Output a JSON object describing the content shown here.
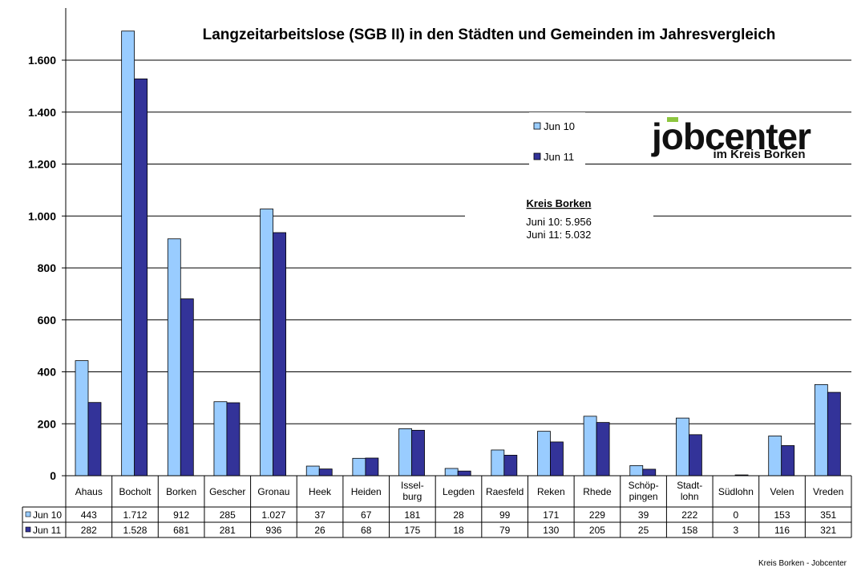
{
  "chart_data": {
    "type": "bar",
    "title": "Langzeitarbeitslose (SGB II) in den Städten und Gemeinden im Jahresvergleich",
    "categories": [
      "Ahaus",
      "Bocholt",
      "Borken",
      "Gescher",
      "Gronau",
      "Heek",
      "Heiden",
      "Issel-|burg",
      "Legden",
      "Raesfeld",
      "Reken",
      "Rhede",
      "Schöp-|pingen",
      "Stadt-|lohn",
      "Südlohn",
      "Velen",
      "Vreden"
    ],
    "series": [
      {
        "name": "Jun 10",
        "color": "#99ccff",
        "values": [
          443,
          1712,
          912,
          285,
          1027,
          37,
          67,
          181,
          28,
          99,
          171,
          229,
          39,
          222,
          0,
          153,
          351
        ],
        "labels": [
          "443",
          "1.712",
          "912",
          "285",
          "1.027",
          "37",
          "67",
          "181",
          "28",
          "99",
          "171",
          "229",
          "39",
          "222",
          "0",
          "153",
          "351"
        ]
      },
      {
        "name": "Jun 11",
        "color": "#333399",
        "values": [
          282,
          1528,
          681,
          281,
          936,
          26,
          68,
          175,
          18,
          79,
          130,
          205,
          25,
          158,
          3,
          116,
          321
        ],
        "labels": [
          "282",
          "1.528",
          "681",
          "281",
          "936",
          "26",
          "68",
          "175",
          "18",
          "79",
          "130",
          "205",
          "25",
          "158",
          "3",
          "116",
          "321"
        ]
      }
    ],
    "ylim": [
      0,
      1800
    ],
    "yticks": [
      0,
      200,
      400,
      600,
      800,
      1000,
      1200,
      1400,
      1600
    ],
    "ytick_labels": [
      "0",
      "200",
      "400",
      "600",
      "800",
      "1.000",
      "1.200",
      "1.400",
      "1.600"
    ],
    "grid": true,
    "legend_position": "upper right, inside plot",
    "data_table": true
  },
  "annotation": {
    "heading": "Kreis Borken",
    "line1": "Juni 10: 5.956",
    "line2": "Juni 11: 5.032"
  },
  "logo": {
    "word": "jobcenter",
    "subtitle": "im Kreis Borken"
  },
  "footer": "Kreis Borken - Jobcenter"
}
